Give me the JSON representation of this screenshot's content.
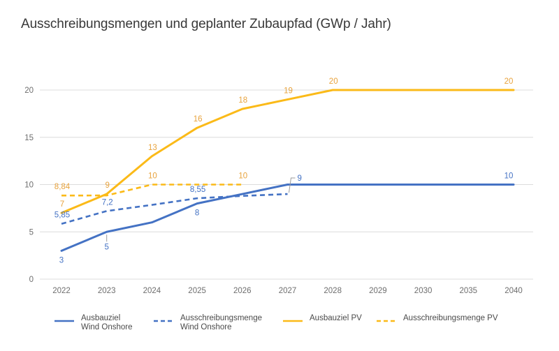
{
  "title": "Ausschreibungsmengen und geplanter Zubaupfad (GWp / Jahr)",
  "colors": {
    "wind_blue": "#4472C4",
    "pv_yellow": "#FBBA18",
    "pv_label_yellow": "#E8A33D",
    "grid_gray": "#DCDCDC",
    "axis_label_gray": "#6E6E6E",
    "title_gray": "#383838",
    "legend_text_gray": "#4A4A4A",
    "callout_gray": "#9B9B9B",
    "background": "#FFFFFF"
  },
  "chart_data": {
    "type": "line",
    "title": "Ausschreibungsmengen und geplanter Zubaupfad (GWp / Jahr)",
    "unit": "GWp / Jahr",
    "xlabel": "",
    "ylabel": "",
    "categories": [
      "2022",
      "2023",
      "2024",
      "2025",
      "2026",
      "2027",
      "2028",
      "2029",
      "2030",
      "2035",
      "2040"
    ],
    "ylim": [
      0,
      20
    ],
    "yticks": [
      0,
      5,
      10,
      15,
      20
    ],
    "grid": "horizontal",
    "legend_position": "bottom",
    "series": [
      {
        "name": "Ausbauziel Wind Onshore",
        "color_key": "blue",
        "line_style": "solid",
        "values": [
          3,
          5,
          6,
          8,
          9,
          10,
          10,
          10,
          10,
          10,
          10
        ],
        "point_labels": [
          {
            "i": 0,
            "text": "3",
            "pos": "below"
          },
          {
            "i": 1,
            "text": "5",
            "pos": "callout-below"
          },
          {
            "i": 3,
            "text": "8",
            "pos": "below"
          },
          {
            "i": 10,
            "text": "10",
            "pos": "above-end"
          }
        ]
      },
      {
        "name": "Ausschreibungsmenge Wind Onshore",
        "color_key": "blue",
        "line_style": "dashed",
        "values": [
          5.85,
          7.2,
          7.85,
          8.55,
          8.8,
          9,
          null,
          null,
          null,
          null,
          null
        ],
        "point_labels": [
          {
            "i": 0,
            "text": "5,85",
            "pos": "above"
          },
          {
            "i": 1,
            "text": "7,2",
            "pos": "above"
          },
          {
            "i": 3,
            "text": "8,55",
            "pos": "above"
          },
          {
            "i": 5,
            "text": "9",
            "pos": "callout-right"
          }
        ]
      },
      {
        "name": "Ausbauziel PV",
        "color_key": "yellow",
        "line_style": "solid",
        "values": [
          7,
          9,
          13,
          16,
          18,
          19,
          20,
          20,
          20,
          20,
          20
        ],
        "point_labels": [
          {
            "i": 0,
            "text": "7",
            "pos": "above"
          },
          {
            "i": 1,
            "text": "9",
            "pos": "above"
          },
          {
            "i": 2,
            "text": "13",
            "pos": "above"
          },
          {
            "i": 3,
            "text": "16",
            "pos": "above"
          },
          {
            "i": 4,
            "text": "18",
            "pos": "above"
          },
          {
            "i": 5,
            "text": "19",
            "pos": "above"
          },
          {
            "i": 6,
            "text": "20",
            "pos": "above"
          },
          {
            "i": 10,
            "text": "20",
            "pos": "above-end"
          }
        ]
      },
      {
        "name": "Ausschreibungsmenge PV",
        "color_key": "yellow",
        "line_style": "dashed",
        "values": [
          8.84,
          8.85,
          10,
          10,
          10,
          null,
          null,
          null,
          null,
          null,
          null
        ],
        "point_labels": [
          {
            "i": 0,
            "text": "8,84",
            "pos": "above"
          },
          {
            "i": 2,
            "text": "10",
            "pos": "above"
          },
          {
            "i": 4,
            "text": "10",
            "pos": "above"
          }
        ]
      }
    ]
  },
  "legend": {
    "items": [
      {
        "lines": [
          "Ausbauziel",
          "Wind Onshore"
        ],
        "color_key": "blue",
        "line_style": "solid"
      },
      {
        "lines": [
          "Ausschreibungsmenge",
          "Wind Onshore"
        ],
        "color_key": "blue",
        "line_style": "dashed"
      },
      {
        "lines": [
          "Ausbauziel PV"
        ],
        "color_key": "yellow",
        "line_style": "solid"
      },
      {
        "lines": [
          "Ausschreibungsmenge PV"
        ],
        "color_key": "yellow",
        "line_style": "dashed"
      }
    ]
  }
}
